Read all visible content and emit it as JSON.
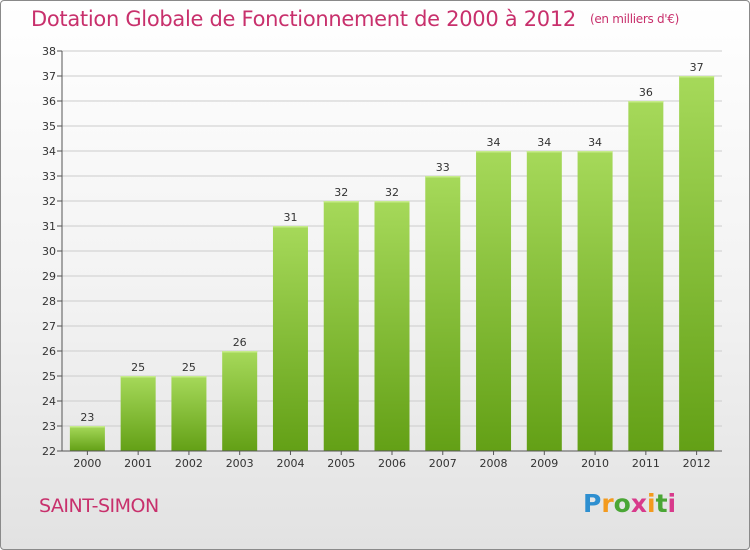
{
  "title": "Dotation Globale de Fonctionnement de 2000 à 2012",
  "unit": "(en milliers d'€)",
  "city": "SAINT-SIMON",
  "logo": {
    "text": "Proxiti",
    "letters": [
      "P",
      "r",
      "o",
      "x",
      "i",
      "t",
      "i"
    ],
    "colors": [
      "#2e8fd0",
      "#f39a1e",
      "#4aa635",
      "#d83a8b",
      "#f39a1e",
      "#4aa635",
      "#d83a8b"
    ]
  },
  "colors": {
    "title": "#c8306c",
    "bar_light": "#a6d95a",
    "bar_dark": "#63a016",
    "grid": "#cccccc",
    "axis": "#555555"
  },
  "chart_data": {
    "type": "bar",
    "title": "Dotation Globale de Fonctionnement de 2000 à 2012",
    "xlabel": "",
    "ylabel": "",
    "categories": [
      "2000",
      "2001",
      "2002",
      "2003",
      "2004",
      "2005",
      "2006",
      "2007",
      "2008",
      "2009",
      "2010",
      "2011",
      "2012"
    ],
    "values": [
      23,
      25,
      25,
      26,
      31,
      32,
      32,
      33,
      34,
      34,
      34,
      36,
      37
    ],
    "ylim": [
      22,
      38
    ],
    "yticks": [
      22,
      23,
      24,
      25,
      26,
      27,
      28,
      29,
      30,
      31,
      32,
      33,
      34,
      35,
      36,
      37,
      38
    ],
    "grid": true,
    "legend": "none"
  }
}
